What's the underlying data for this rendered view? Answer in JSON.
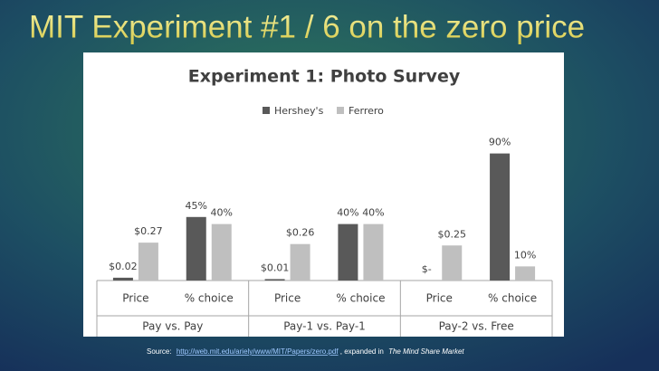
{
  "title": "MIT Experiment #1 / 6 on the zero price",
  "chart_data": {
    "type": "bar",
    "title": "Experiment 1: Photo Survey",
    "categories": [
      "Price",
      "% choice",
      "Price",
      "% choice",
      "Price",
      "% choice"
    ],
    "groups": [
      "Pay vs. Pay",
      "Pay-1 vs. Pay-1",
      "Pay-2 vs. Free"
    ],
    "series": [
      {
        "name": "Hershey's",
        "color": "#595959",
        "values": [
          0.02,
          45,
          0.01,
          40,
          0,
          90
        ],
        "value_labels": [
          "$0.02",
          "45%",
          "$0.01",
          "40%",
          "$-",
          "90%"
        ]
      },
      {
        "name": "Ferrero",
        "color": "#bfbfbf",
        "values": [
          0.27,
          40,
          0.26,
          40,
          0.25,
          10
        ],
        "value_labels": [
          "$0.27",
          "40%",
          "$0.26",
          "40%",
          "$0.25",
          "10%"
        ]
      }
    ]
  },
  "source": {
    "prefix": "Source:",
    "link": "http://web.mit.edu/ariely/www/MIT/Papers/zero.pdf",
    "middle": ", expanded in",
    "book": "The Mind Share Market"
  }
}
